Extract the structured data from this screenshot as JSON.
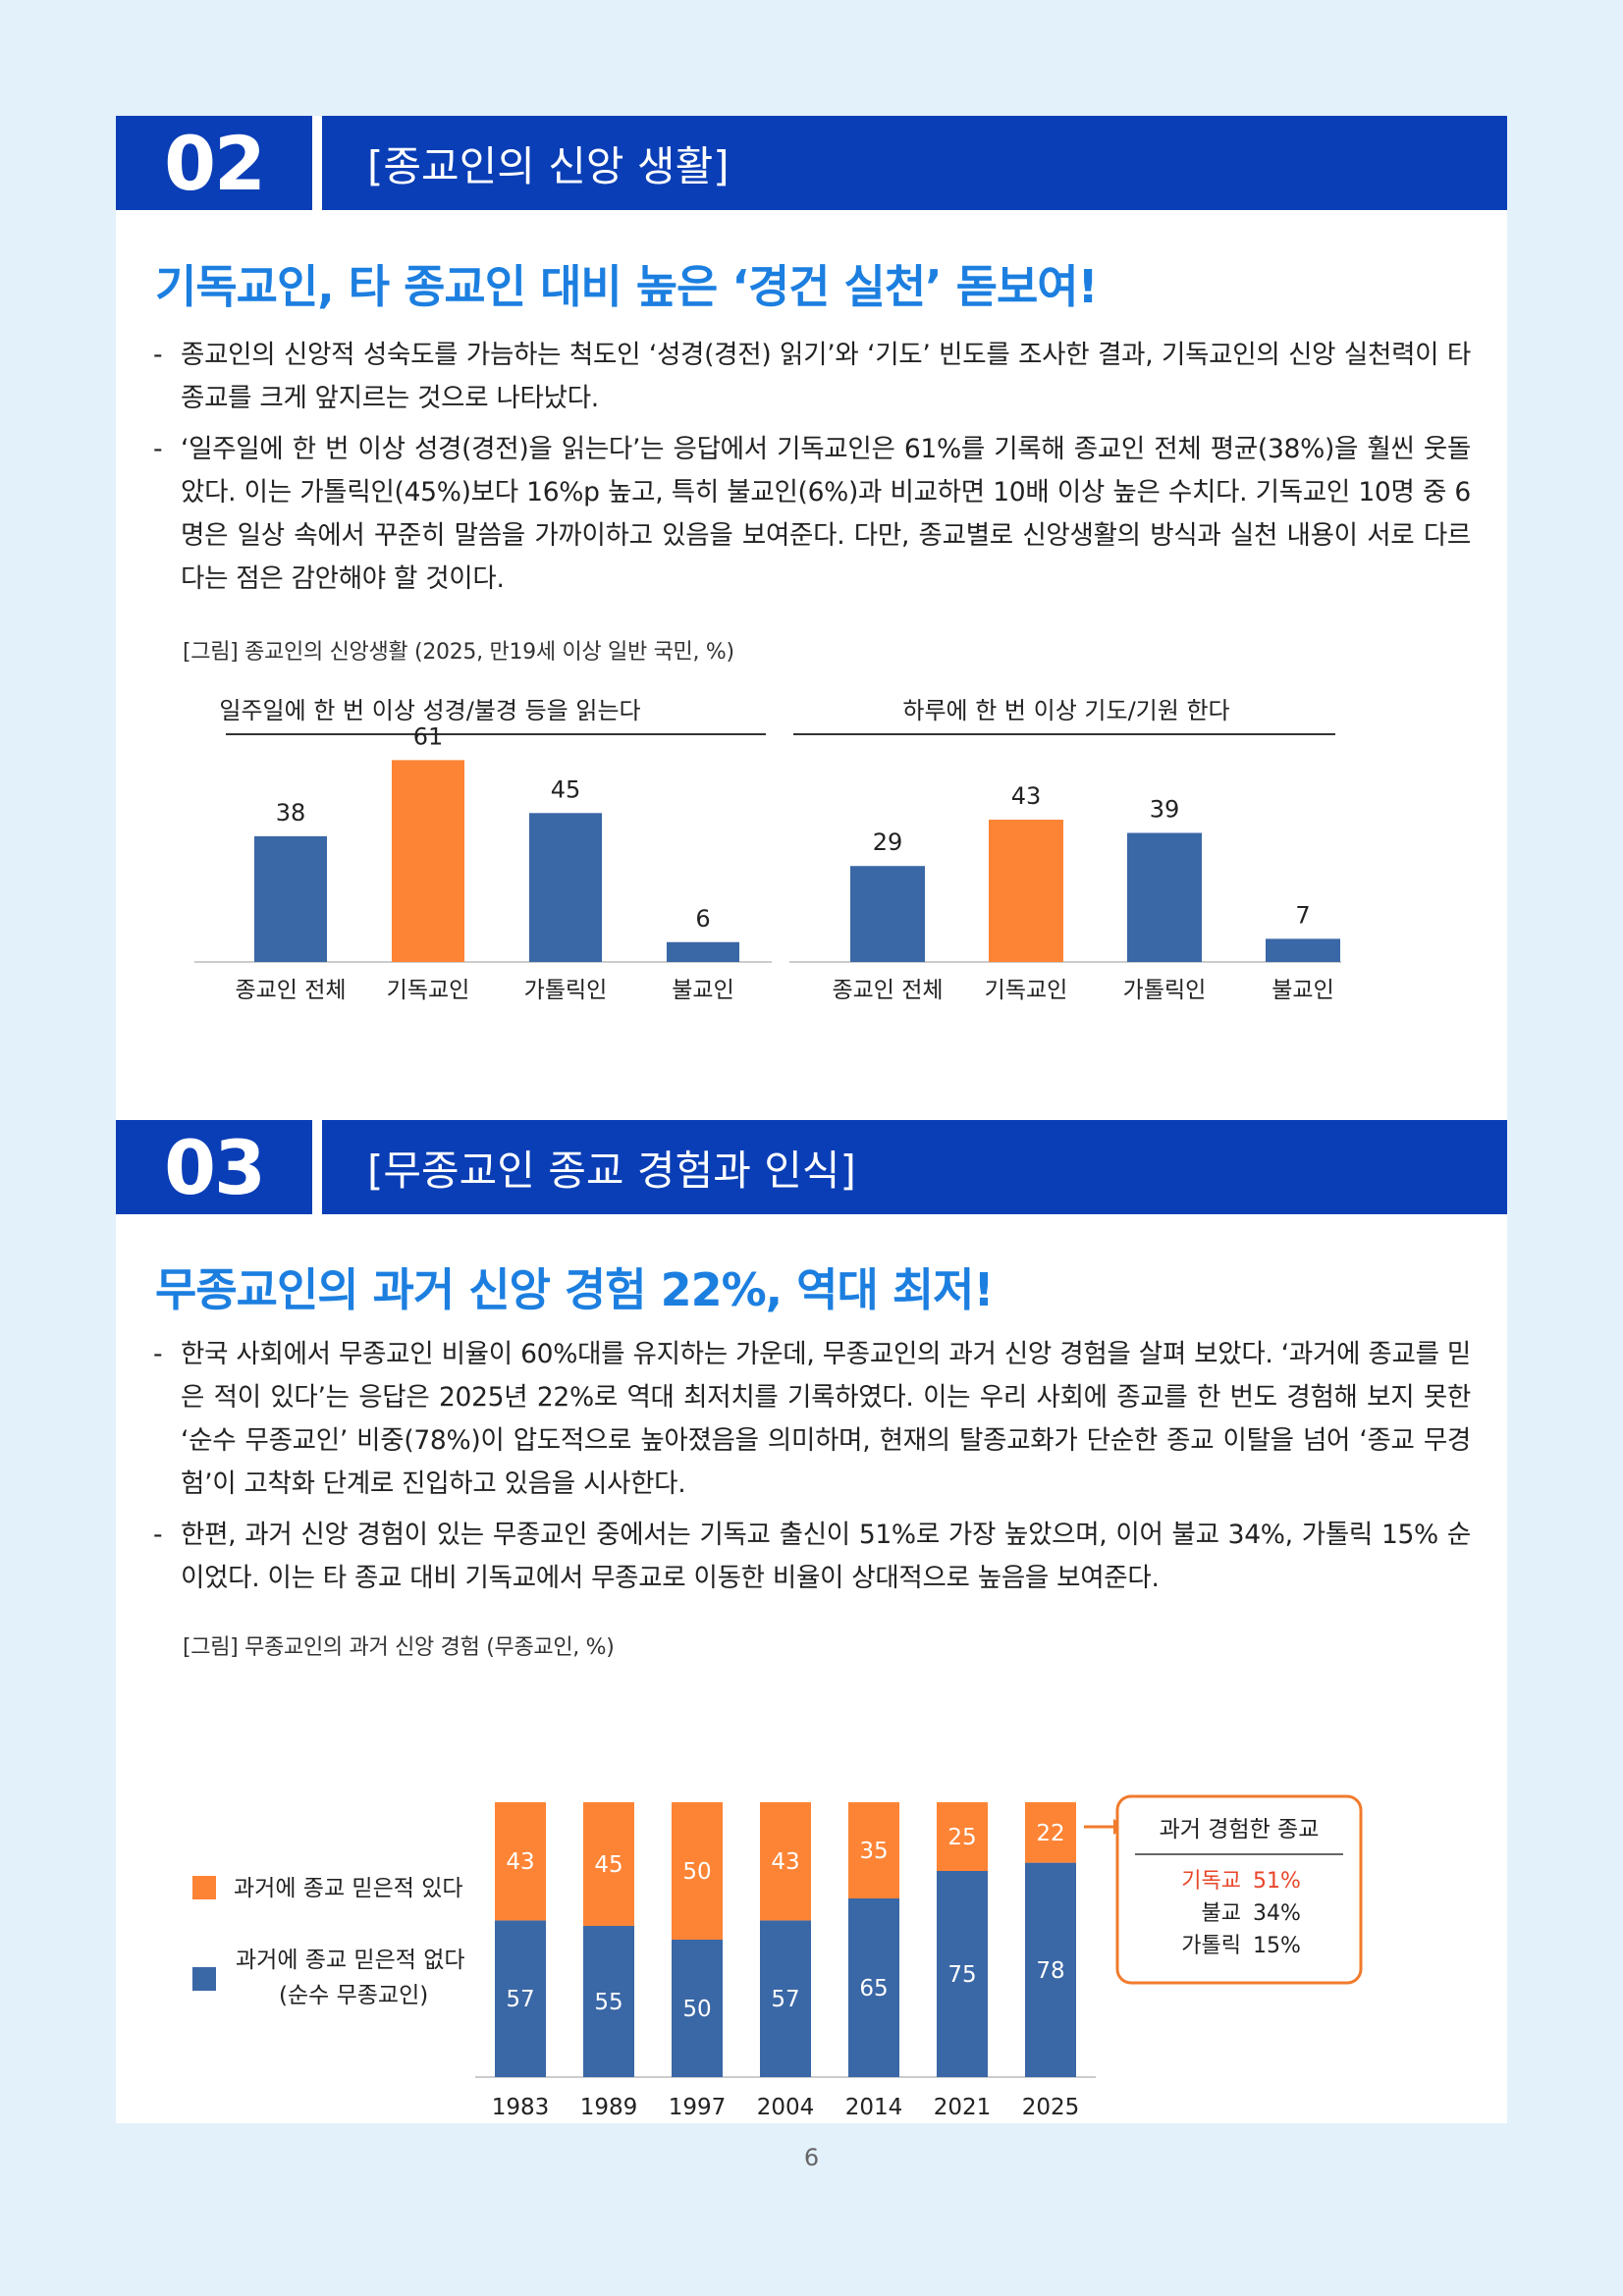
{
  "sections": [
    {
      "num": "02",
      "title": "[종교인의 신앙 생활]",
      "headline": "기독교인, 타 종교인 대비 높은 ‘경건 실천’ 돋보여!",
      "bullets": [
        "종교인의 신앙적 성숙도를 가늠하는 척도인 ‘성경(경전) 읽기’와 ‘기도’ 빈도를 조사한 결과, 기독교인의 신앙 실천력이 타 종교를 크게 앞지르는 것으로 나타났다.",
        "‘일주일에 한 번 이상 성경(경전)을 읽는다’는 응답에서 기독교인은 61%를 기록해 종교인 전체 평균(38%)을 훨씬 웃돌았다. 이는 가톨릭인(45%)보다 16%p 높고, 특히 불교인(6%)과 비교하면 10배 이상 높은 수치다. 기독교인 10명 중 6명은 일상 속에서 꾸준히 말씀을 가까이하고 있음을 보여준다. 다만, 종교별로 신앙생활의 방식과 실천 내용이 서로 다르다는 점은 감안해야 할 것이다."
      ],
      "figure_caption": "[그림] 종교인의 신앙생활 (2025, 만19세 이상 일반 국민, %)"
    },
    {
      "num": "03",
      "title": "[무종교인 종교 경험과 인식]",
      "headline": "무종교인의 과거 신앙 경험 22%, 역대 최저!",
      "bullets": [
        "한국 사회에서 무종교인 비율이 60%대를 유지하는 가운데, 무종교인의 과거 신앙 경험을 살펴 보았다. ‘과거에 종교를 믿은 적이 있다’는 응답은 2025년 22%로 역대 최저치를 기록하였다. 이는 우리 사회에 종교를 한 번도 경험해 보지 못한 ‘순수 무종교인’ 비중(78%)이 압도적으로 높아졌음을 의미하며, 현재의 탈종교화가 단순한 종교 이탈을 넘어 ‘종교 무경험’이 고착화 단계로 진입하고 있음을 시사한다.",
        "한편, 과거 신앙 경험이 있는 무종교인 중에서는 기독교 출신이 51%로 가장 높았으며, 이어 불교 34%, 가톨릭 15% 순이었다. 이는 타 종교 대비 기독교에서 무종교로 이동한 비율이 상대적으로 높음을 보여준다."
      ],
      "figure_caption": "[그림] 무종교인의 과거 신앙 경험 (무종교인, %)"
    }
  ],
  "colors": {
    "header_blue": "#0a3eb6",
    "headline_blue": "#1c7fe0",
    "bar_blue": "#3a67a6",
    "bar_orange": "#fd8435",
    "callout_border": "#f07b2c",
    "callout_red": "#e8472a"
  },
  "chart_data": [
    {
      "type": "bar",
      "title": "일주일에 한 번 이상 성경/불경 등을 읽는다",
      "categories": [
        "종교인 전체",
        "기독교인",
        "가톨릭인",
        "불교인"
      ],
      "values": [
        38,
        61,
        45,
        6
      ],
      "highlight_index": 1,
      "ylim": [
        0,
        70
      ]
    },
    {
      "type": "bar",
      "title": "하루에 한 번 이상 기도/기원 한다",
      "categories": [
        "종교인 전체",
        "기독교인",
        "가톨릭인",
        "불교인"
      ],
      "values": [
        29,
        43,
        39,
        7
      ],
      "highlight_index": 1,
      "ylim": [
        0,
        70
      ]
    },
    {
      "type": "bar",
      "stacked": true,
      "categories": [
        "1983",
        "1989",
        "1997",
        "2004",
        "2014",
        "2021",
        "2025"
      ],
      "series": [
        {
          "name": "과거에 종교 믿은적 없다\n(순수 무종교인)",
          "legend_lines": [
            "과거에 종교 믿은적 없다",
            "(순수 무종교인)"
          ],
          "values": [
            57,
            55,
            50,
            57,
            65,
            75,
            78
          ],
          "color": "#3a67a6"
        },
        {
          "name": "과거에 종교 믿은적 있다",
          "legend_lines": [
            "과거에 종교 믿은적 있다"
          ],
          "values": [
            43,
            45,
            50,
            43,
            35,
            25,
            22
          ],
          "color": "#fd8435"
        }
      ],
      "ylim": [
        0,
        100
      ],
      "legend_position": "left",
      "callout": {
        "title": "과거 경험한 종교",
        "rows": [
          {
            "label": "기독교",
            "value": "51%",
            "highlight": true
          },
          {
            "label": "불교",
            "value": "34%",
            "highlight": false
          },
          {
            "label": "가톨릭",
            "value": "15%",
            "highlight": false
          }
        ]
      }
    }
  ],
  "footer": {
    "page_number": "6"
  }
}
